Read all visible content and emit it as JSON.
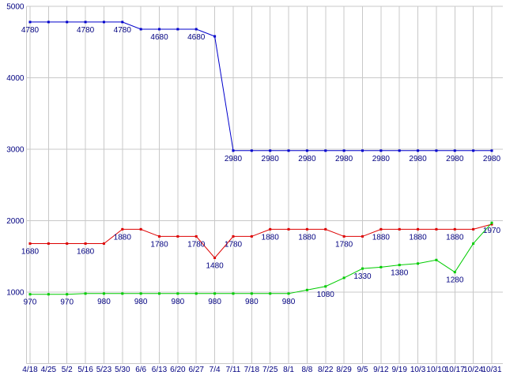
{
  "chart_data": {
    "type": "line",
    "title": "",
    "xlabel": "",
    "ylabel": "",
    "ylim": [
      0,
      5000
    ],
    "grid": true,
    "legend": "none",
    "background": "#ffffff",
    "grid_color": "#c8c8c8",
    "label_color": "#000080",
    "y_ticks": [
      1000,
      2000,
      3000,
      4000,
      5000
    ],
    "y_tick_labels": [
      "1000",
      "2000",
      "3000",
      "4000",
      "5000"
    ],
    "x_labels": [
      "4/18",
      "4/25",
      "5/2",
      "5/16",
      "5/23",
      "5/30",
      "6/6",
      "6/13",
      "6/20",
      "6/27",
      "7/4",
      "7/11",
      "7/18",
      "7/25",
      "8/1",
      "8/8",
      "8/22",
      "8/29",
      "9/5",
      "9/12",
      "9/19",
      "10/3",
      "10/10",
      "10/17",
      "10/24",
      "10/31"
    ],
    "series": [
      {
        "name": "blue-series",
        "color": "#0000cc",
        "values": [
          4780,
          4780,
          4780,
          4780,
          4780,
          4780,
          4680,
          4680,
          4680,
          4680,
          4580,
          2980,
          2980,
          2980,
          2980,
          2980,
          2980,
          2980,
          2980,
          2980,
          2980,
          2980,
          2980,
          2980,
          2980,
          2980
        ],
        "labels": [
          "4780",
          null,
          null,
          "4780",
          null,
          "4780",
          null,
          "4680",
          null,
          "4680",
          null,
          "2980",
          null,
          "2980",
          null,
          "2980",
          null,
          "2980",
          null,
          "2980",
          null,
          "2980",
          null,
          "2980",
          null,
          "2980"
        ]
      },
      {
        "name": "red-series",
        "color": "#dd0000",
        "values": [
          1680,
          1680,
          1680,
          1680,
          1680,
          1880,
          1880,
          1780,
          1780,
          1780,
          1480,
          1780,
          1780,
          1880,
          1880,
          1880,
          1880,
          1780,
          1780,
          1880,
          1880,
          1880,
          1880,
          1880,
          1880,
          1950
        ],
        "labels": [
          "1680",
          null,
          null,
          "1680",
          null,
          "1880",
          null,
          "1780",
          null,
          "1780",
          "1480",
          "1780",
          null,
          "1880",
          null,
          "1880",
          null,
          "1780",
          null,
          "1880",
          null,
          "1880",
          null,
          "1880",
          null,
          null
        ]
      },
      {
        "name": "green-series",
        "color": "#00cc00",
        "values": [
          970,
          970,
          970,
          980,
          980,
          980,
          980,
          980,
          980,
          980,
          980,
          980,
          980,
          980,
          980,
          1030,
          1080,
          1200,
          1330,
          1350,
          1380,
          1400,
          1450,
          1280,
          1680,
          1970
        ],
        "labels": [
          "970",
          null,
          "970",
          null,
          "980",
          null,
          "980",
          null,
          "980",
          null,
          "980",
          null,
          "980",
          null,
          "980",
          null,
          "1080",
          null,
          "1330",
          null,
          "1380",
          null,
          null,
          "1280",
          null,
          "1970"
        ]
      }
    ]
  }
}
